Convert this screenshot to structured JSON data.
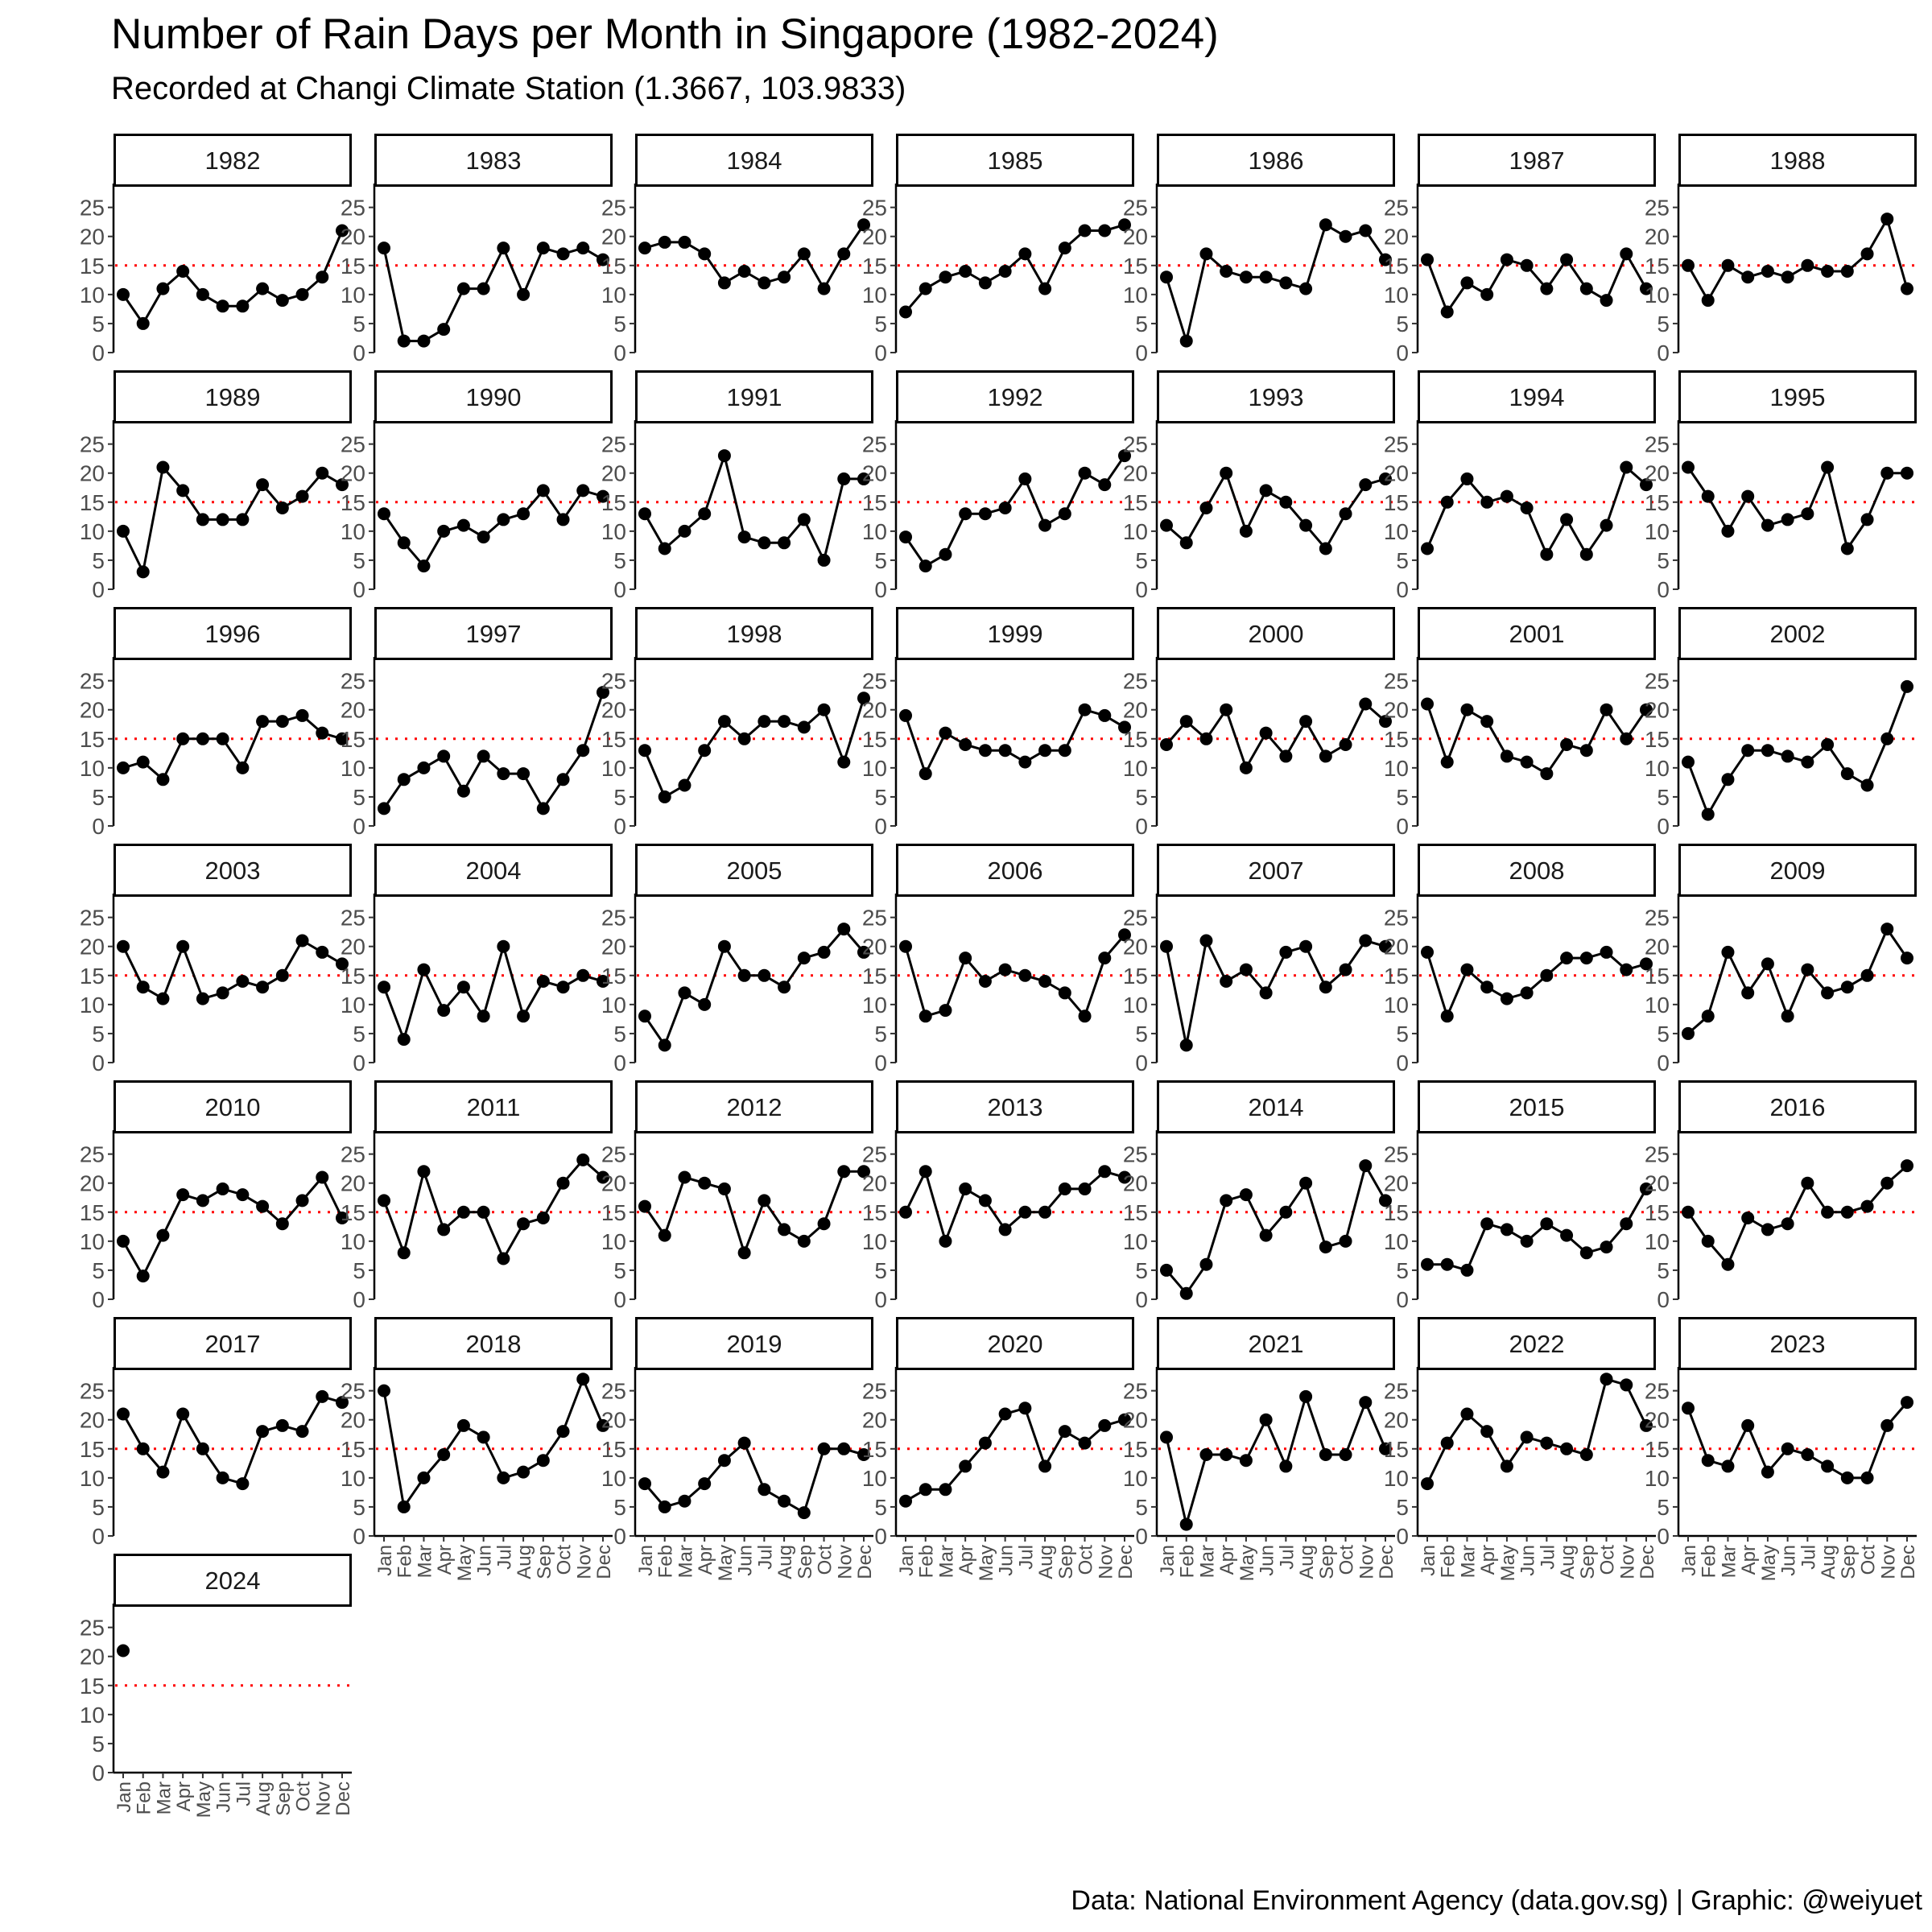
{
  "title": "Number of Rain Days per Month in Singapore (1982-2024)",
  "subtitle": "Recorded at Changi Climate Station (1.3667, 103.9833)",
  "caption": "Data: National Environment Agency (data.gov.sg) | Graphic: @weiyuet",
  "colors": {
    "line": "#000000",
    "point": "#000000",
    "reference": "#ff0000",
    "strip_border": "#000000",
    "axis_text": "#4d4d4d"
  },
  "chart_data": {
    "type": "line",
    "facet": "year",
    "months": [
      "Jan",
      "Feb",
      "Mar",
      "Apr",
      "May",
      "Jun",
      "Jul",
      "Aug",
      "Sep",
      "Oct",
      "Nov",
      "Dec"
    ],
    "y_ticks": [
      0,
      5,
      10,
      15,
      20,
      25
    ],
    "ylim": [
      0,
      28
    ],
    "reference_line": 15,
    "grid": false,
    "series": [
      {
        "year": "1982",
        "values": [
          10,
          5,
          11,
          14,
          10,
          8,
          8,
          11,
          9,
          10,
          13,
          21
        ]
      },
      {
        "year": "1983",
        "values": [
          18,
          2,
          2,
          4,
          11,
          11,
          18,
          10,
          18,
          17,
          18,
          16
        ]
      },
      {
        "year": "1984",
        "values": [
          18,
          19,
          19,
          17,
          12,
          14,
          12,
          13,
          17,
          11,
          17,
          22
        ]
      },
      {
        "year": "1985",
        "values": [
          7,
          11,
          13,
          14,
          12,
          14,
          17,
          11,
          18,
          21,
          21,
          22
        ]
      },
      {
        "year": "1986",
        "values": [
          13,
          2,
          17,
          14,
          13,
          13,
          12,
          11,
          22,
          20,
          21,
          16
        ]
      },
      {
        "year": "1987",
        "values": [
          16,
          7,
          12,
          10,
          16,
          15,
          11,
          16,
          11,
          9,
          17,
          11
        ]
      },
      {
        "year": "1988",
        "values": [
          15,
          9,
          15,
          13,
          14,
          13,
          15,
          14,
          14,
          17,
          23,
          11
        ]
      },
      {
        "year": "1989",
        "values": [
          10,
          3,
          21,
          17,
          12,
          12,
          12,
          18,
          14,
          16,
          20,
          18
        ]
      },
      {
        "year": "1990",
        "values": [
          13,
          8,
          4,
          10,
          11,
          9,
          12,
          13,
          17,
          12,
          17,
          16
        ]
      },
      {
        "year": "1991",
        "values": [
          13,
          7,
          10,
          13,
          23,
          9,
          8,
          8,
          12,
          5,
          19,
          19
        ]
      },
      {
        "year": "1992",
        "values": [
          9,
          4,
          6,
          13,
          13,
          14,
          19,
          11,
          13,
          20,
          18,
          23
        ]
      },
      {
        "year": "1993",
        "values": [
          11,
          8,
          14,
          20,
          10,
          17,
          15,
          11,
          7,
          13,
          18,
          19
        ]
      },
      {
        "year": "1994",
        "values": [
          7,
          15,
          19,
          15,
          16,
          14,
          6,
          12,
          6,
          11,
          21,
          18
        ]
      },
      {
        "year": "1995",
        "values": [
          21,
          16,
          10,
          16,
          11,
          12,
          13,
          21,
          7,
          12,
          20,
          20
        ]
      },
      {
        "year": "1996",
        "values": [
          10,
          11,
          8,
          15,
          15,
          15,
          10,
          18,
          18,
          19,
          16,
          15
        ]
      },
      {
        "year": "1997",
        "values": [
          3,
          8,
          10,
          12,
          6,
          12,
          9,
          9,
          3,
          8,
          13,
          23
        ]
      },
      {
        "year": "1998",
        "values": [
          13,
          5,
          7,
          13,
          18,
          15,
          18,
          18,
          17,
          20,
          11,
          22
        ]
      },
      {
        "year": "1999",
        "values": [
          19,
          9,
          16,
          14,
          13,
          13,
          11,
          13,
          13,
          20,
          19,
          17
        ]
      },
      {
        "year": "2000",
        "values": [
          14,
          18,
          15,
          20,
          10,
          16,
          12,
          18,
          12,
          14,
          21,
          18
        ]
      },
      {
        "year": "2001",
        "values": [
          21,
          11,
          20,
          18,
          12,
          11,
          9,
          14,
          13,
          20,
          15,
          20
        ]
      },
      {
        "year": "2002",
        "values": [
          11,
          2,
          8,
          13,
          13,
          12,
          11,
          14,
          9,
          7,
          15,
          24
        ]
      },
      {
        "year": "2003",
        "values": [
          20,
          13,
          11,
          20,
          11,
          12,
          14,
          13,
          15,
          21,
          19,
          17
        ]
      },
      {
        "year": "2004",
        "values": [
          13,
          4,
          16,
          9,
          13,
          8,
          20,
          8,
          14,
          13,
          15,
          14
        ]
      },
      {
        "year": "2005",
        "values": [
          8,
          3,
          12,
          10,
          20,
          15,
          15,
          13,
          18,
          19,
          23,
          19
        ]
      },
      {
        "year": "2006",
        "values": [
          20,
          8,
          9,
          18,
          14,
          16,
          15,
          14,
          12,
          8,
          18,
          22
        ]
      },
      {
        "year": "2007",
        "values": [
          20,
          3,
          21,
          14,
          16,
          12,
          19,
          20,
          13,
          16,
          21,
          20
        ]
      },
      {
        "year": "2008",
        "values": [
          19,
          8,
          16,
          13,
          11,
          12,
          15,
          18,
          18,
          19,
          16,
          17
        ]
      },
      {
        "year": "2009",
        "values": [
          5,
          8,
          19,
          12,
          17,
          8,
          16,
          12,
          13,
          15,
          23,
          18
        ]
      },
      {
        "year": "2010",
        "values": [
          10,
          4,
          11,
          18,
          17,
          19,
          18,
          16,
          13,
          17,
          21,
          14
        ]
      },
      {
        "year": "2011",
        "values": [
          17,
          8,
          22,
          12,
          15,
          15,
          7,
          13,
          14,
          20,
          24,
          21
        ]
      },
      {
        "year": "2012",
        "values": [
          16,
          11,
          21,
          20,
          19,
          8,
          17,
          12,
          10,
          13,
          22,
          22
        ]
      },
      {
        "year": "2013",
        "values": [
          15,
          22,
          10,
          19,
          17,
          12,
          15,
          15,
          19,
          19,
          22,
          21
        ]
      },
      {
        "year": "2014",
        "values": [
          5,
          1,
          6,
          17,
          18,
          11,
          15,
          20,
          9,
          10,
          23,
          17
        ]
      },
      {
        "year": "2015",
        "values": [
          6,
          6,
          5,
          13,
          12,
          10,
          13,
          11,
          8,
          9,
          13,
          19
        ]
      },
      {
        "year": "2016",
        "values": [
          15,
          10,
          6,
          14,
          12,
          13,
          20,
          15,
          15,
          16,
          20,
          23
        ]
      },
      {
        "year": "2017",
        "values": [
          21,
          15,
          11,
          21,
          15,
          10,
          9,
          18,
          19,
          18,
          24,
          23
        ]
      },
      {
        "year": "2018",
        "values": [
          25,
          5,
          10,
          14,
          19,
          17,
          10,
          11,
          13,
          18,
          27,
          19
        ]
      },
      {
        "year": "2019",
        "values": [
          9,
          5,
          6,
          9,
          13,
          16,
          8,
          6,
          4,
          15,
          15,
          14
        ]
      },
      {
        "year": "2020",
        "values": [
          6,
          8,
          8,
          12,
          16,
          21,
          22,
          12,
          18,
          16,
          19,
          20
        ]
      },
      {
        "year": "2021",
        "values": [
          17,
          2,
          14,
          14,
          13,
          20,
          12,
          24,
          14,
          14,
          23,
          15
        ]
      },
      {
        "year": "2022",
        "values": [
          9,
          16,
          21,
          18,
          12,
          17,
          16,
          15,
          14,
          27,
          26,
          19
        ]
      },
      {
        "year": "2023",
        "values": [
          22,
          13,
          12,
          19,
          11,
          15,
          14,
          12,
          10,
          10,
          19,
          23
        ]
      },
      {
        "year": "2024",
        "values": [
          21
        ]
      }
    ]
  }
}
